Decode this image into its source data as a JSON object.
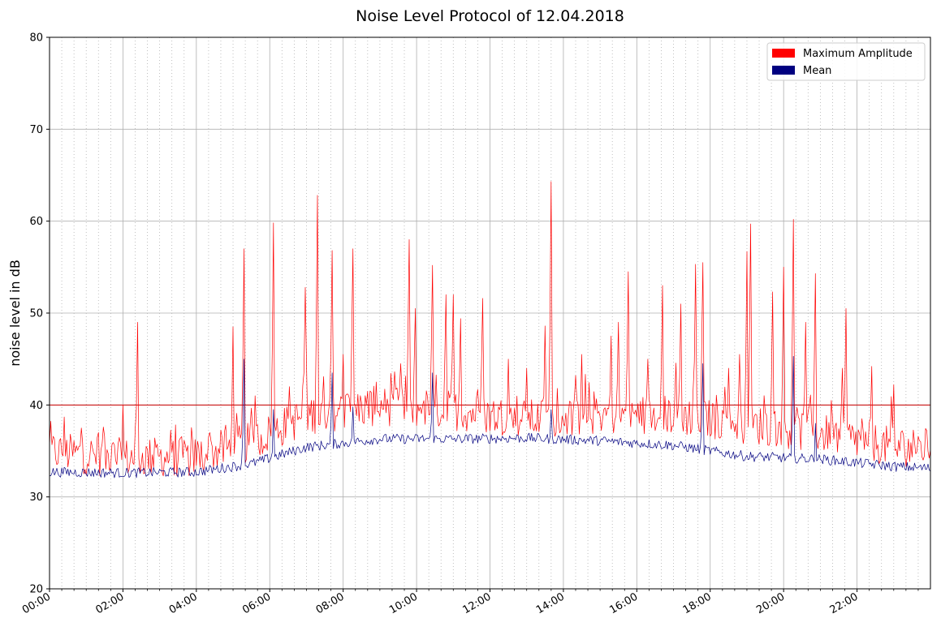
{
  "chart_data": {
    "type": "line",
    "title": "Noise Level Protocol of 12.04.2018",
    "xlabel": "",
    "ylabel": "noise level in dB",
    "xlim_hours": [
      0,
      24
    ],
    "ylim": [
      20,
      80
    ],
    "y_ticks": [
      20,
      30,
      40,
      50,
      60,
      70,
      80
    ],
    "x_ticks": [
      {
        "hour": 0,
        "label": "00:00"
      },
      {
        "hour": 2,
        "label": "02:00"
      },
      {
        "hour": 4,
        "label": "04:00"
      },
      {
        "hour": 6,
        "label": "06:00"
      },
      {
        "hour": 8,
        "label": "08:00"
      },
      {
        "hour": 10,
        "label": "10:00"
      },
      {
        "hour": 12,
        "label": "12:00"
      },
      {
        "hour": 14,
        "label": "14:00"
      },
      {
        "hour": 16,
        "label": "16:00"
      },
      {
        "hour": 18,
        "label": "18:00"
      },
      {
        "hour": 20,
        "label": "20:00"
      },
      {
        "hour": 22,
        "label": "22:00"
      }
    ],
    "grid": {
      "major": true,
      "minor_x_dotted": true
    },
    "legend_position": "top-right",
    "threshold": {
      "value": 40,
      "color": "#cc0000"
    },
    "series": [
      {
        "name": "Maximum Amplitude",
        "color": "#ff0000",
        "baseline_profile": [
          [
            0,
            34.5
          ],
          [
            2,
            33.8
          ],
          [
            4,
            34.0
          ],
          [
            5.5,
            35.5
          ],
          [
            7,
            38.5
          ],
          [
            9,
            39.5
          ],
          [
            11,
            39.0
          ],
          [
            13,
            38.0
          ],
          [
            15,
            38.5
          ],
          [
            17,
            38.5
          ],
          [
            19,
            37.5
          ],
          [
            21,
            36.5
          ],
          [
            23,
            35.0
          ],
          [
            24,
            35.0
          ]
        ],
        "spikes": [
          [
            0.4,
            38.7
          ],
          [
            0.88,
            37.5
          ],
          [
            1.45,
            37.6
          ],
          [
            2.0,
            40.0
          ],
          [
            2.4,
            49.0
          ],
          [
            4.35,
            37.0
          ],
          [
            5.0,
            48.5
          ],
          [
            5.3,
            57.0
          ],
          [
            5.6,
            41.0
          ],
          [
            6.1,
            59.8
          ],
          [
            6.55,
            42.0
          ],
          [
            6.95,
            52.8
          ],
          [
            7.3,
            62.8
          ],
          [
            7.7,
            56.8
          ],
          [
            8.0,
            45.5
          ],
          [
            8.25,
            57.0
          ],
          [
            8.9,
            42.5
          ],
          [
            9.55,
            44.5
          ],
          [
            9.8,
            58.0
          ],
          [
            9.95,
            50.5
          ],
          [
            10.45,
            55.2
          ],
          [
            10.8,
            52.0
          ],
          [
            11.0,
            52.0
          ],
          [
            11.2,
            49.4
          ],
          [
            11.8,
            51.6
          ],
          [
            12.5,
            45.0
          ],
          [
            13.0,
            44.0
          ],
          [
            13.5,
            48.6
          ],
          [
            13.65,
            64.3
          ],
          [
            14.5,
            45.5
          ],
          [
            15.3,
            47.5
          ],
          [
            15.5,
            49.0
          ],
          [
            15.75,
            54.5
          ],
          [
            16.3,
            45.0
          ],
          [
            16.7,
            53.0
          ],
          [
            17.2,
            51.0
          ],
          [
            17.6,
            55.3
          ],
          [
            17.8,
            55.5
          ],
          [
            18.5,
            44.0
          ],
          [
            18.8,
            45.5
          ],
          [
            19.0,
            56.7
          ],
          [
            19.1,
            59.7
          ],
          [
            19.7,
            52.3
          ],
          [
            20.0,
            55.0
          ],
          [
            20.25,
            60.2
          ],
          [
            20.6,
            49.0
          ],
          [
            20.85,
            54.3
          ],
          [
            21.3,
            40.5
          ],
          [
            21.6,
            44.0
          ],
          [
            21.7,
            50.5
          ],
          [
            22.4,
            44.2
          ],
          [
            23.0,
            42.2
          ],
          [
            23.9,
            37.2
          ]
        ]
      },
      {
        "name": "Mean",
        "color": "#000080",
        "baseline_profile": [
          [
            0,
            32.6
          ],
          [
            2,
            32.5
          ],
          [
            4,
            32.6
          ],
          [
            5.5,
            33.5
          ],
          [
            7,
            35.3
          ],
          [
            9,
            36.2
          ],
          [
            11,
            36.2
          ],
          [
            13,
            36.3
          ],
          [
            15,
            36.0
          ],
          [
            17,
            35.5
          ],
          [
            19,
            34.3
          ],
          [
            21,
            34.0
          ],
          [
            23,
            33.2
          ],
          [
            24,
            33.0
          ]
        ],
        "spikes": [
          [
            5.3,
            45.0
          ],
          [
            6.1,
            39.5
          ],
          [
            7.7,
            43.5
          ],
          [
            8.25,
            39.8
          ],
          [
            10.45,
            43.5
          ],
          [
            13.65,
            39.5
          ],
          [
            17.8,
            44.5
          ],
          [
            20.25,
            45.3
          ],
          [
            20.85,
            38.0
          ]
        ]
      }
    ]
  }
}
